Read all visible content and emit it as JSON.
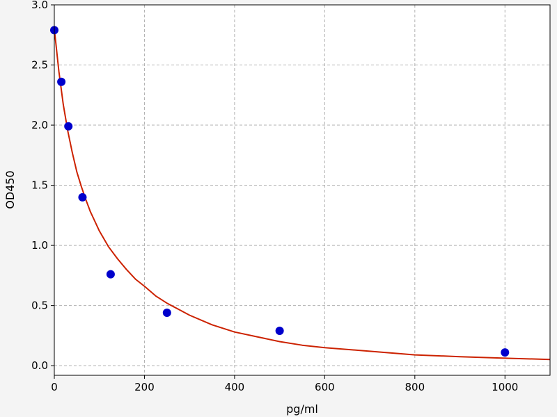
{
  "chart_data": {
    "type": "scatter",
    "title": "",
    "xlabel": "pg/ml",
    "ylabel": "OD450",
    "xlim": [
      0,
      1100
    ],
    "ylim": [
      -0.08,
      3.0
    ],
    "grid": true,
    "x_ticks": [
      0,
      200,
      400,
      600,
      800,
      1000
    ],
    "y_ticks": [
      0.0,
      0.5,
      1.0,
      1.5,
      2.0,
      2.5,
      3.0
    ],
    "x_tick_labels": [
      "0",
      "200",
      "400",
      "600",
      "800",
      "1000"
    ],
    "y_tick_labels": [
      "0.0",
      "0.5",
      "1.0",
      "1.5",
      "2.0",
      "2.5",
      "3.0"
    ],
    "series": [
      {
        "kind": "points",
        "color": "#0000cc",
        "x": [
          0,
          15.6,
          31.25,
          62.5,
          125,
          250,
          500,
          1000
        ],
        "y": [
          2.79,
          2.36,
          1.99,
          1.4,
          0.76,
          0.44,
          0.29,
          0.11
        ]
      },
      {
        "kind": "fit-line",
        "color": "#cc2200",
        "x": [
          0,
          10,
          20,
          30,
          40,
          50,
          60,
          70,
          80,
          90,
          100,
          120,
          140,
          160,
          180,
          200,
          225,
          250,
          300,
          350,
          400,
          450,
          500,
          550,
          600,
          700,
          800,
          900,
          1000,
          1100
        ],
        "y": [
          2.8,
          2.45,
          2.17,
          1.95,
          1.77,
          1.61,
          1.49,
          1.38,
          1.28,
          1.2,
          1.12,
          0.99,
          0.89,
          0.8,
          0.72,
          0.66,
          0.58,
          0.52,
          0.42,
          0.34,
          0.28,
          0.24,
          0.2,
          0.17,
          0.15,
          0.12,
          0.09,
          0.075,
          0.062,
          0.052
        ]
      }
    ]
  }
}
